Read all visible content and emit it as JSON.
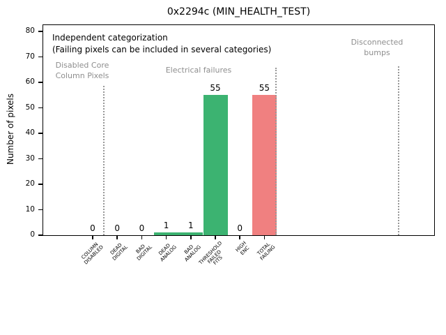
{
  "chart_data": {
    "type": "bar",
    "title": "0x2294c (MIN_HEALTH_TEST)",
    "ylabel": "Number of pixels",
    "xlabel": "",
    "ylim": [
      0,
      82.5
    ],
    "yticks": [
      0,
      10,
      20,
      30,
      40,
      50,
      60,
      70,
      80
    ],
    "grid": false,
    "legend": null,
    "categories": [
      "COLUMN DISABLED",
      "DEAD DIGITAL",
      "BAD DIGITAL",
      "DEAD ANALOG",
      "BAD ANALOG",
      "THRESHOLD FAILED FITS",
      "HIGH ENC",
      "TOTAL FAILING"
    ],
    "category_label_lines": [
      [
        "COLUMN",
        "DISABLED"
      ],
      [
        "DEAD",
        "DIGITAL"
      ],
      [
        "BAD",
        "DIGITAL"
      ],
      [
        "DEAD",
        "ANALOG"
      ],
      [
        "BAD",
        "ANALOG"
      ],
      [
        "THRESHOLD",
        "FAILED",
        "FITS"
      ],
      [
        "HIGH",
        "ENC"
      ],
      [
        "TOTAL",
        "FAILING"
      ]
    ],
    "values": [
      0,
      0,
      0,
      1,
      1,
      55,
      0,
      55
    ],
    "bar_value_labels": [
      "0",
      "0",
      "0",
      "1",
      "1",
      "55",
      "0",
      "55"
    ],
    "bar_colors": [
      "#3cb371",
      "#3cb371",
      "#3cb371",
      "#3cb371",
      "#3cb371",
      "#3cb371",
      "#3cb371",
      "#f08080"
    ],
    "annotations": [
      "Independent categorization",
      "(Failing pixels can be included in several categories)"
    ],
    "sections": [
      {
        "label": "Disabled Core\nColumn Pixels"
      },
      {
        "label": "Electrical failures"
      },
      {
        "label": "Disconnected\nbumps"
      }
    ],
    "colors": {
      "bar_green": "#3cb371",
      "bar_red": "#f08080",
      "section_text": "#8e8e8e",
      "divider": "#979797",
      "axis": "#000000",
      "background": "#ffffff"
    }
  }
}
